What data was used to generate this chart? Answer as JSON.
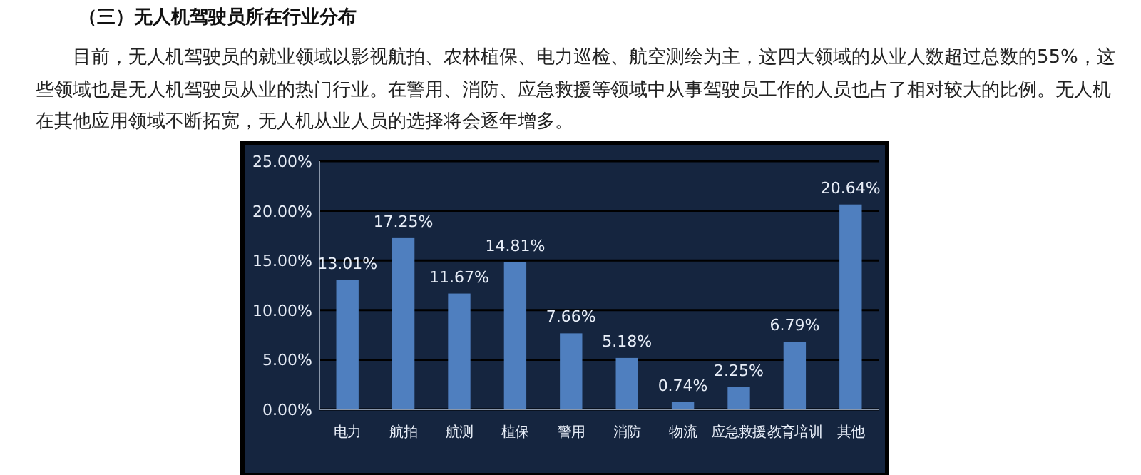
{
  "chart_data": {
    "type": "bar",
    "title": "（三）无人机驾驶员所在行业分布",
    "subtitle": "目前，无人机驾驶员的就业领域以影视航拍、农林植保、电力巡检、航空测绘为主，这四大领域的从业人数超过总数的55%，这些领域也是无人机驾驶员从业的热门行业。在警用、消防、应急救援等领域中从事驾驶员工作的人员也占了相对较大的比例。无人机在其他应用领域不断拓宽，无人机从业人员的选择将会逐年增多。",
    "categories": [
      "电力",
      "航拍",
      "航测",
      "植保",
      "警用",
      "消防",
      "物流",
      "应急救援",
      "教育培训",
      "其他"
    ],
    "values": [
      13.01,
      17.25,
      11.67,
      14.81,
      7.66,
      5.18,
      0.74,
      2.25,
      6.79,
      20.64
    ],
    "value_labels": [
      "13.01%",
      "17.25%",
      "11.67%",
      "14.81%",
      "7.66%",
      "5.18%",
      "0.74%",
      "2.25%",
      "6.79%",
      "20.64%"
    ],
    "color": "#4f7fbf",
    "ylim": [
      0,
      25
    ],
    "yticks": [
      {
        "value": 0,
        "label": "0.00%"
      },
      {
        "value": 5,
        "label": "5.00%"
      },
      {
        "value": 10,
        "label": "10.00%"
      },
      {
        "value": 15,
        "label": "15.00%"
      },
      {
        "value": 20,
        "label": "20.00%"
      },
      {
        "value": 25,
        "label": "25.00%"
      }
    ],
    "grid": "y"
  }
}
